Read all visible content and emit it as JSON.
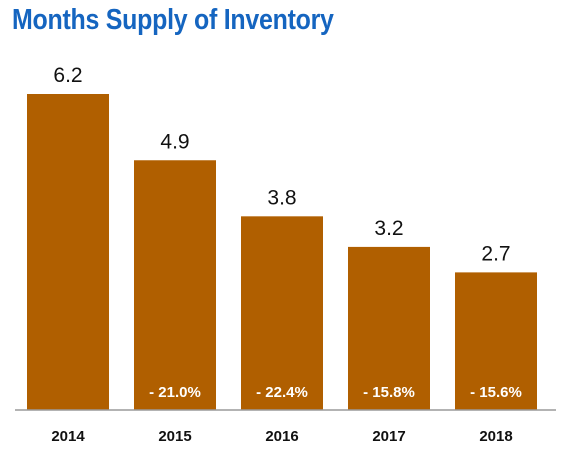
{
  "chart_data": {
    "type": "bar",
    "title": "Months Supply of Inventory",
    "categories": [
      "2014",
      "2015",
      "2016",
      "2017",
      "2018"
    ],
    "values": [
      6.2,
      4.9,
      3.8,
      3.2,
      2.7
    ],
    "value_labels": [
      "6.2",
      "4.9",
      "3.8",
      "3.2",
      "2.7"
    ],
    "change_labels": [
      "",
      "- 21.0%",
      "- 22.4%",
      "- 15.8%",
      "- 15.6%"
    ],
    "bar_color": "#b05f00",
    "title_color": "#1565c0",
    "ylim": [
      0,
      6.2
    ],
    "grid": false,
    "legend": "none"
  }
}
